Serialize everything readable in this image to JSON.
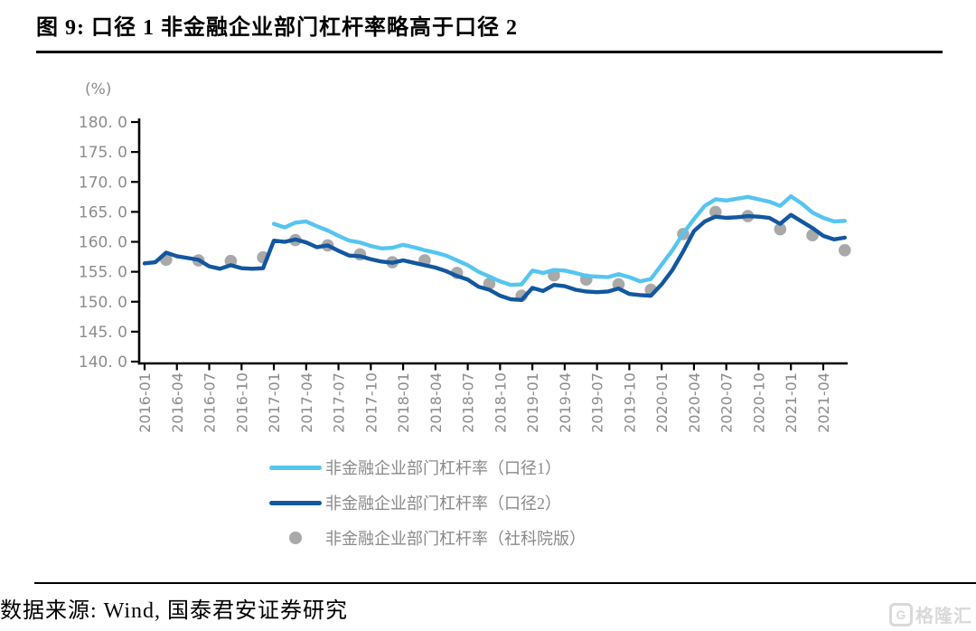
{
  "figure": {
    "title": "图 9: 口径 1 非金融企业部门杠杆率略高于口径 2",
    "source": "数据来源: Wind, 国泰君安证券研究",
    "watermark_mark": "G",
    "watermark": "格隆汇"
  },
  "colors": {
    "caliber1_line": "#56C5F0",
    "caliber2_line": "#1257A0",
    "cass_dot": "#A9A9A9",
    "axis": "#000000",
    "tick_label": "#8C8C8C",
    "legend_text": "#8A8A8A",
    "watermark": "#D9D9D9"
  },
  "chart_data": {
    "type": "line",
    "title": "",
    "y_unit_label": "(%)",
    "ylim": [
      140,
      180
    ],
    "grid": false,
    "legend_position": "bottom",
    "y_ticks": {
      "values": [
        180,
        175,
        170,
        165,
        160,
        155,
        150,
        145,
        140
      ],
      "labels": [
        "180. 0",
        "175. 0",
        "170. 0",
        "165. 0",
        "160. 0",
        "155. 0",
        "150. 0",
        "145. 0",
        "140. 0"
      ]
    },
    "x_start_month": "2016-01",
    "x_months_total": 66,
    "x_tick_every_months": 3,
    "x_tick_labels": [
      "2016-01",
      "2016-04",
      "2016-07",
      "2016-10",
      "2017-01",
      "2017-04",
      "2017-07",
      "2017-10",
      "2018-01",
      "2018-04",
      "2018-07",
      "2018-10",
      "2019-01",
      "2019-04",
      "2019-07",
      "2019-10",
      "2020-01",
      "2020-04",
      "2020-07",
      "2020-10",
      "2021-01",
      "2021-04"
    ],
    "series": [
      {
        "name": "非金融企业部门杠杆率（口径1）",
        "type": "line",
        "color": "#56C5F0",
        "start_month": 12,
        "month_step": 1,
        "values": [
          163.0,
          162.4,
          163.2,
          163.4,
          162.6,
          161.9,
          161.0,
          160.2,
          159.9,
          159.3,
          158.9,
          159.0,
          159.5,
          159.1,
          158.6,
          158.2,
          157.7,
          156.9,
          156.1,
          155.0,
          154.2,
          153.4,
          152.8,
          152.9,
          155.2,
          154.8,
          155.3,
          155.2,
          154.8,
          154.3,
          154.2,
          154.1,
          154.6,
          154.1,
          153.4,
          153.8,
          156.2,
          158.6,
          161.4,
          163.8,
          166.0,
          167.1,
          166.9,
          167.2,
          167.5,
          167.1,
          166.7,
          166.0,
          167.6,
          166.4,
          164.9,
          164.0,
          163.4,
          163.5
        ]
      },
      {
        "name": "非金融企业部门杠杆率（口径2）",
        "type": "line",
        "color": "#1257A0",
        "start_month": 0,
        "month_step": 1,
        "values": [
          156.4,
          156.6,
          158.2,
          157.6,
          157.3,
          157.0,
          155.9,
          155.5,
          156.1,
          155.6,
          155.5,
          155.6,
          160.2,
          160.0,
          160.4,
          159.9,
          159.1,
          159.4,
          158.5,
          157.7,
          157.6,
          157.1,
          156.7,
          156.5,
          156.9,
          156.5,
          156.1,
          155.7,
          155.1,
          154.3,
          153.7,
          152.5,
          152.0,
          151.0,
          150.4,
          150.3,
          152.3,
          151.8,
          152.8,
          152.6,
          152.0,
          151.7,
          151.6,
          151.7,
          152.2,
          151.3,
          151.1,
          151.0,
          152.9,
          155.3,
          158.4,
          161.8,
          163.4,
          164.2,
          164.0,
          164.1,
          164.3,
          164.2,
          164.0,
          163.0,
          164.5,
          163.4,
          162.3,
          161.0,
          160.4,
          160.7
        ]
      },
      {
        "name": "非金融企业部门杠杆率（社科院版）",
        "type": "scatter",
        "color": "#A9A9A9",
        "start_month": 2,
        "month_step": 3,
        "values": [
          157.0,
          156.9,
          156.8,
          157.4,
          160.3,
          159.4,
          157.9,
          156.6,
          156.9,
          154.8,
          153.0,
          151.0,
          154.4,
          153.7,
          152.9,
          152.0,
          161.3,
          165.0,
          164.3,
          162.1,
          161.1,
          158.6
        ]
      }
    ]
  }
}
